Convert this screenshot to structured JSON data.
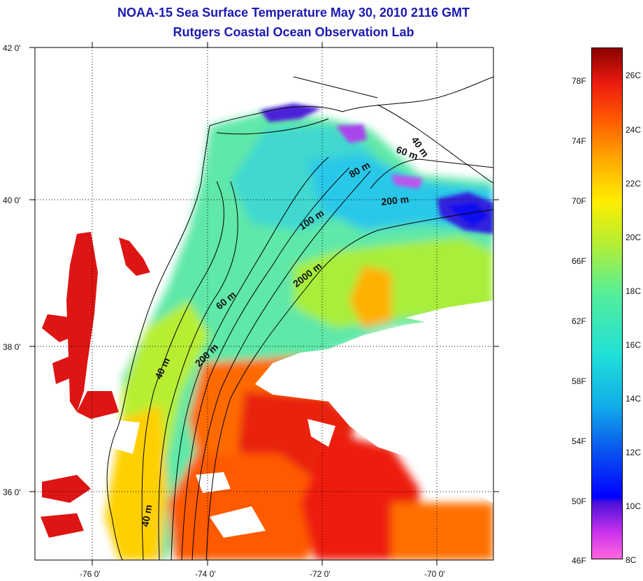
{
  "header": {
    "title": "NOAA-15 Sea Surface Temperature May 30, 2010 2116 GMT",
    "subtitle": "Rutgers Coastal Ocean Observation Lab"
  },
  "map": {
    "lat_labels": [
      "42 0'",
      "40 0'",
      "38 0'",
      "36 0'"
    ],
    "lon_labels": [
      "-76 0'",
      "-74 0'",
      "-72 0'",
      "-70 0'"
    ],
    "contour_labels": [
      "40 m",
      "60 m",
      "80 m",
      "200 m",
      "100 m",
      "2000 m",
      "60 m",
      "40 m",
      "200 m",
      "40 m"
    ]
  },
  "colorbar": {
    "fahrenheit": [
      "78F",
      "74F",
      "70F",
      "66F",
      "62F",
      "58F",
      "54F",
      "50F",
      "46F"
    ],
    "celsius": [
      "26C",
      "24C",
      "22C",
      "20C",
      "18C",
      "16C",
      "14C",
      "12C",
      "10C",
      "8C"
    ]
  }
}
